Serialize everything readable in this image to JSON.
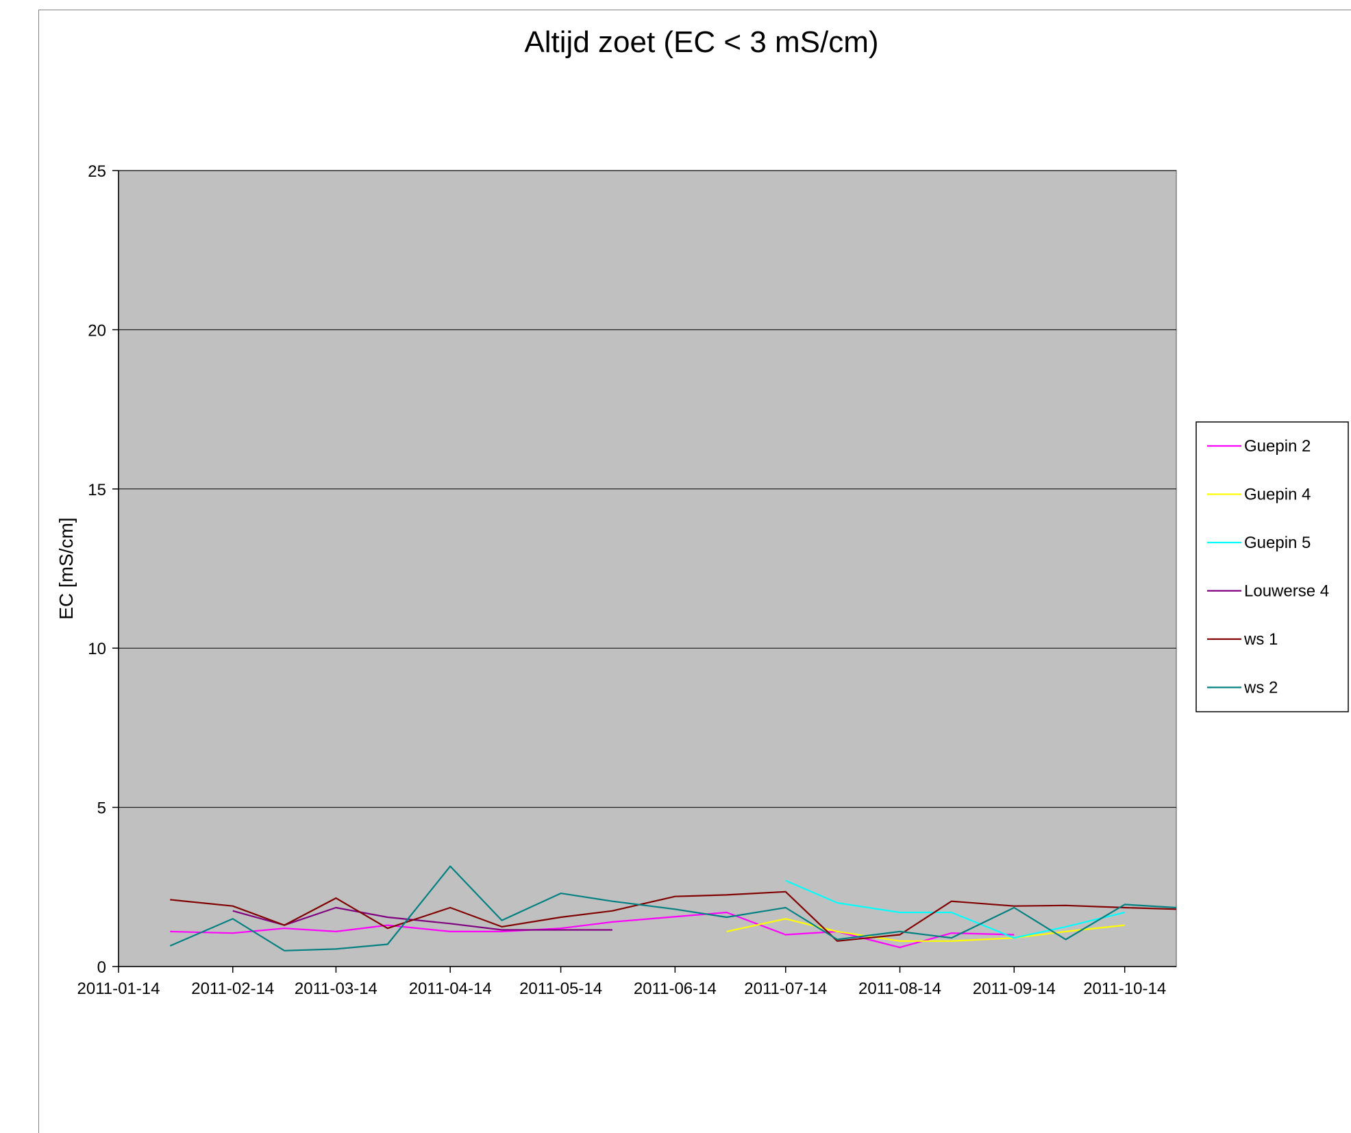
{
  "chart_data": {
    "type": "line",
    "title": "Altijd zoet (EC < 3 mS/cm)",
    "xlabel": "",
    "ylabel": "EC [mS/cm]",
    "ylim": [
      0,
      25
    ],
    "yticks": [
      0,
      5,
      10,
      15,
      20,
      25
    ],
    "xlim": [
      "2011-01-14",
      "2011-10-28"
    ],
    "xticks": [
      "2011-01-14",
      "2011-02-14",
      "2011-03-14",
      "2011-04-14",
      "2011-05-14",
      "2011-06-14",
      "2011-07-14",
      "2011-08-14",
      "2011-09-14",
      "2011-10-14"
    ],
    "grid": "horizontal",
    "plot_background": "#c0c0c0",
    "legend_position": "right",
    "series": [
      {
        "name": "Guepin 2",
        "color": "#ff00ff",
        "points": [
          [
            "2011-01-28",
            1.1
          ],
          [
            "2011-02-14",
            1.05
          ],
          [
            "2011-02-28",
            1.2
          ],
          [
            "2011-03-14",
            1.1
          ],
          [
            "2011-03-28",
            1.3
          ],
          [
            "2011-04-14",
            1.1
          ],
          [
            "2011-04-28",
            1.1
          ],
          [
            "2011-05-14",
            1.2
          ],
          [
            "2011-05-28",
            1.4
          ],
          [
            "2011-06-28",
            1.7
          ],
          [
            "2011-07-14",
            1.0
          ],
          [
            "2011-07-28",
            1.1
          ],
          [
            "2011-08-14",
            0.6
          ],
          [
            "2011-08-28",
            1.05
          ],
          [
            "2011-09-14",
            1.0
          ]
        ]
      },
      {
        "name": "Guepin 4",
        "color": "#ffff00",
        "points": [
          [
            "2011-06-28",
            1.1
          ],
          [
            "2011-07-14",
            1.5
          ],
          [
            "2011-07-28",
            1.1
          ],
          [
            "2011-08-14",
            0.8
          ],
          [
            "2011-08-28",
            0.8
          ],
          [
            "2011-09-14",
            0.9
          ],
          [
            "2011-09-28",
            1.1
          ],
          [
            "2011-10-14",
            1.3
          ]
        ]
      },
      {
        "name": "Guepin 5",
        "color": "#00ffff",
        "points": [
          [
            "2011-07-14",
            2.7
          ],
          [
            "2011-07-28",
            2.0
          ],
          [
            "2011-08-14",
            1.7
          ],
          [
            "2011-08-28",
            1.7
          ],
          [
            "2011-09-14",
            0.9
          ],
          [
            "2011-09-28",
            1.25
          ],
          [
            "2011-10-14",
            1.7
          ]
        ]
      },
      {
        "name": "Louwerse 4",
        "color": "#800080",
        "points": [
          [
            "2011-02-14",
            1.75
          ],
          [
            "2011-02-28",
            1.3
          ],
          [
            "2011-03-14",
            1.85
          ],
          [
            "2011-03-28",
            1.55
          ],
          [
            "2011-04-14",
            1.35
          ],
          [
            "2011-04-28",
            1.15
          ],
          [
            "2011-05-14",
            1.15
          ],
          [
            "2011-05-28",
            1.15
          ]
        ]
      },
      {
        "name": "ws 1",
        "color": "#800000",
        "points": [
          [
            "2011-01-28",
            2.1
          ],
          [
            "2011-02-14",
            1.9
          ],
          [
            "2011-02-28",
            1.3
          ],
          [
            "2011-03-14",
            2.15
          ],
          [
            "2011-03-28",
            1.2
          ],
          [
            "2011-04-14",
            1.85
          ],
          [
            "2011-04-28",
            1.25
          ],
          [
            "2011-05-14",
            1.55
          ],
          [
            "2011-05-28",
            1.75
          ],
          [
            "2011-06-14",
            2.2
          ],
          [
            "2011-06-28",
            2.25
          ],
          [
            "2011-07-14",
            2.35
          ],
          [
            "2011-07-28",
            0.8
          ],
          [
            "2011-08-14",
            1.0
          ],
          [
            "2011-08-28",
            2.05
          ],
          [
            "2011-09-14",
            1.9
          ],
          [
            "2011-09-28",
            1.92
          ],
          [
            "2011-10-14",
            1.85
          ],
          [
            "2011-10-28",
            1.8
          ]
        ]
      },
      {
        "name": "ws 2",
        "color": "#008080",
        "points": [
          [
            "2011-01-28",
            0.65
          ],
          [
            "2011-02-14",
            1.5
          ],
          [
            "2011-02-28",
            0.5
          ],
          [
            "2011-03-14",
            0.55
          ],
          [
            "2011-03-28",
            0.7
          ],
          [
            "2011-04-14",
            3.15
          ],
          [
            "2011-04-28",
            1.45
          ],
          [
            "2011-05-14",
            2.3
          ],
          [
            "2011-05-28",
            2.05
          ],
          [
            "2011-06-14",
            1.8
          ],
          [
            "2011-06-28",
            1.55
          ],
          [
            "2011-07-14",
            1.85
          ],
          [
            "2011-07-28",
            0.85
          ],
          [
            "2011-08-14",
            1.1
          ],
          [
            "2011-08-28",
            0.9
          ],
          [
            "2011-09-14",
            1.85
          ],
          [
            "2011-09-28",
            0.85
          ],
          [
            "2011-10-14",
            1.95
          ],
          [
            "2011-10-28",
            1.85
          ]
        ]
      }
    ]
  }
}
